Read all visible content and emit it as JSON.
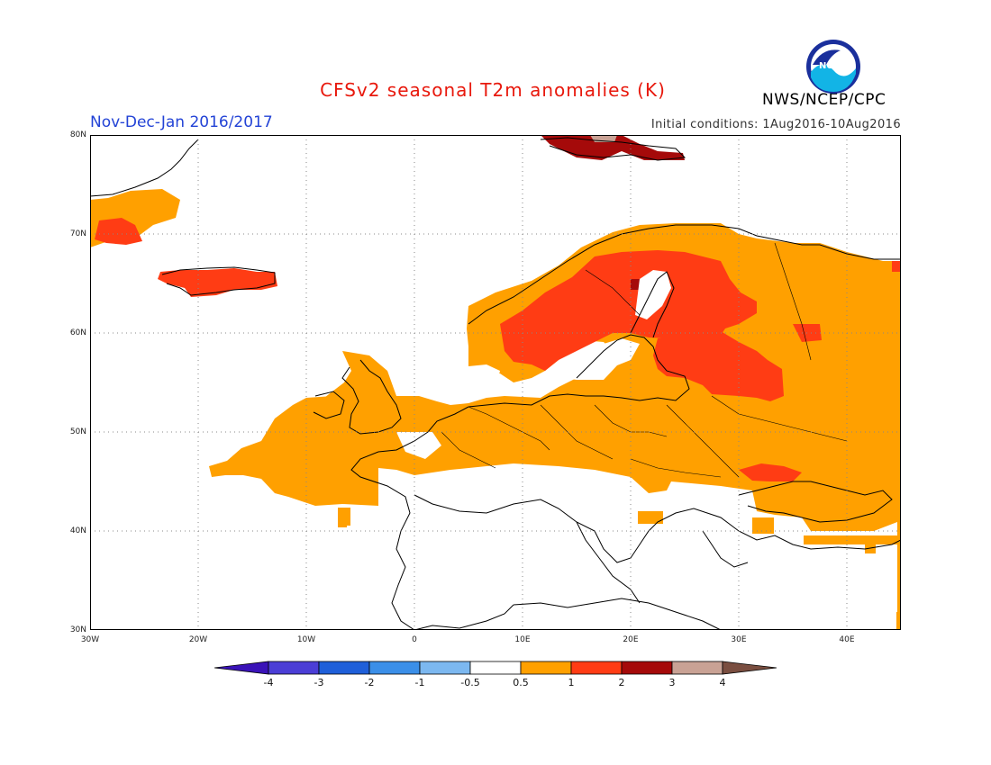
{
  "title": "CFSv2 seasonal T2m anomalies (K)",
  "period": "Nov-Dec-Jan 2016/2017",
  "initial_conditions": "Initial conditions: 1Aug2016-10Aug2016",
  "agency": "NWS/NCEP/CPC",
  "logo_text": "NOAA",
  "map": {
    "lon_range": [
      -30,
      45
    ],
    "lat_range": [
      30,
      80
    ],
    "lat_ticks": [
      "30N",
      "40N",
      "50N",
      "60N",
      "70N",
      "80N"
    ],
    "lon_ticks": [
      "30W",
      "20W",
      "10W",
      "0",
      "10E",
      "20E",
      "30E",
      "40E"
    ],
    "grid": "dotted every 10 degrees",
    "anomaly_regions": [
      {
        "name": "Western Russia",
        "class": "0.5-1",
        "color": "#ffa000"
      },
      {
        "name": "Central and Eastern Europe",
        "class": "0.5-1",
        "color": "#ffa000"
      },
      {
        "name": "France",
        "class": "0.5-1",
        "color": "#ffa000"
      },
      {
        "name": "British Isles",
        "class": "0.5-1",
        "color": "#ffa000"
      },
      {
        "name": "Northern Scandinavia",
        "class": "0.5-1",
        "color": "#ffa000"
      },
      {
        "name": "Sweden and Finland",
        "class": "1-2",
        "color": "#ff3c14"
      },
      {
        "name": "Baltic and Belarus",
        "class": "1-2",
        "color": "#ff3c14"
      },
      {
        "name": "Iceland",
        "class": "1-2",
        "color": "#ff3c14"
      },
      {
        "name": "Svalbard",
        "class": "2-3",
        "color": "#a50a0a"
      },
      {
        "name": "Greenland coast",
        "class": "0.5-1",
        "color": "#ffa000"
      }
    ]
  },
  "colorbar": {
    "labels": [
      "-4",
      "-3",
      "-2",
      "-1",
      "-0.5",
      "0.5",
      "1",
      "2",
      "3",
      "4"
    ],
    "colors": [
      "#3a13b8",
      "#4b3ed6",
      "#1f5fd9",
      "#3b8fe8",
      "#7cb8f0",
      "#ffffff",
      "#ffa000",
      "#ff3c14",
      "#a50a0a",
      "#c9a295",
      "#7a4e40"
    ]
  }
}
